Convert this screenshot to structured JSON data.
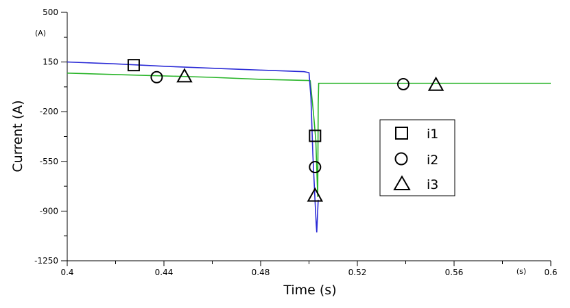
{
  "chart_data": {
    "type": "line",
    "title": "",
    "xlabel": "Time (s)",
    "ylabel": "Current (A)",
    "x_unit_label": "(s)",
    "y_unit_label": "(A)",
    "xlim": [
      0.4,
      0.6
    ],
    "ylim": [
      -1250,
      500
    ],
    "x_ticks": [
      0.4,
      0.44,
      0.48,
      0.52,
      0.56,
      0.6
    ],
    "x_tick_labels": [
      "0.4",
      "0.44",
      "0.48",
      "0.52",
      "0.56",
      "0.6"
    ],
    "y_ticks": [
      500,
      150,
      -200,
      -550,
      -900,
      -1250
    ],
    "y_tick_labels": [
      "500",
      "150",
      "-200",
      "-550",
      "-900",
      "-1250"
    ],
    "grid": false,
    "legend_position": "center-right",
    "series": [
      {
        "name": "i1",
        "marker": "square",
        "color": "#2b2bd6",
        "x": [
          0.4,
          0.42,
          0.44,
          0.46,
          0.48,
          0.498,
          0.5,
          0.5008,
          0.5016,
          0.5024,
          0.503,
          0.5032,
          0.5038
        ],
        "values": [
          150,
          137,
          120,
          106,
          93,
          82,
          75,
          -100,
          -500,
          -800,
          -1000,
          -1050,
          -820
        ],
        "markers": [
          {
            "x": 0.4275,
            "y": 128
          },
          {
            "x": 0.5025,
            "y": -370
          }
        ]
      },
      {
        "name": "i2",
        "marker": "circle",
        "color": "#2b2bd6",
        "x": [],
        "values": [],
        "markers": [
          {
            "x": 0.437,
            "y": 43
          },
          {
            "x": 0.5025,
            "y": -590
          },
          {
            "x": 0.539,
            "y": -6
          }
        ]
      },
      {
        "name": "i3",
        "marker": "triangle",
        "color": "#28b428",
        "x": [
          0.4,
          0.42,
          0.44,
          0.46,
          0.48,
          0.4995,
          0.5005,
          0.5018,
          0.5028,
          0.5036,
          0.5038,
          0.504,
          0.51,
          0.53,
          0.55,
          0.58,
          0.6
        ],
        "values": [
          72,
          62,
          52,
          42,
          28,
          20,
          18,
          -200,
          -400,
          -800,
          -150,
          0,
          0,
          0,
          0,
          0,
          0
        ],
        "markers": [
          {
            "x": 0.4485,
            "y": 50
          },
          {
            "x": 0.5025,
            "y": -790
          },
          {
            "x": 0.5525,
            "y": -10
          }
        ]
      }
    ],
    "legend": [
      {
        "label": "i1",
        "marker": "square"
      },
      {
        "label": "i2",
        "marker": "circle"
      },
      {
        "label": "i3",
        "marker": "triangle"
      }
    ]
  }
}
